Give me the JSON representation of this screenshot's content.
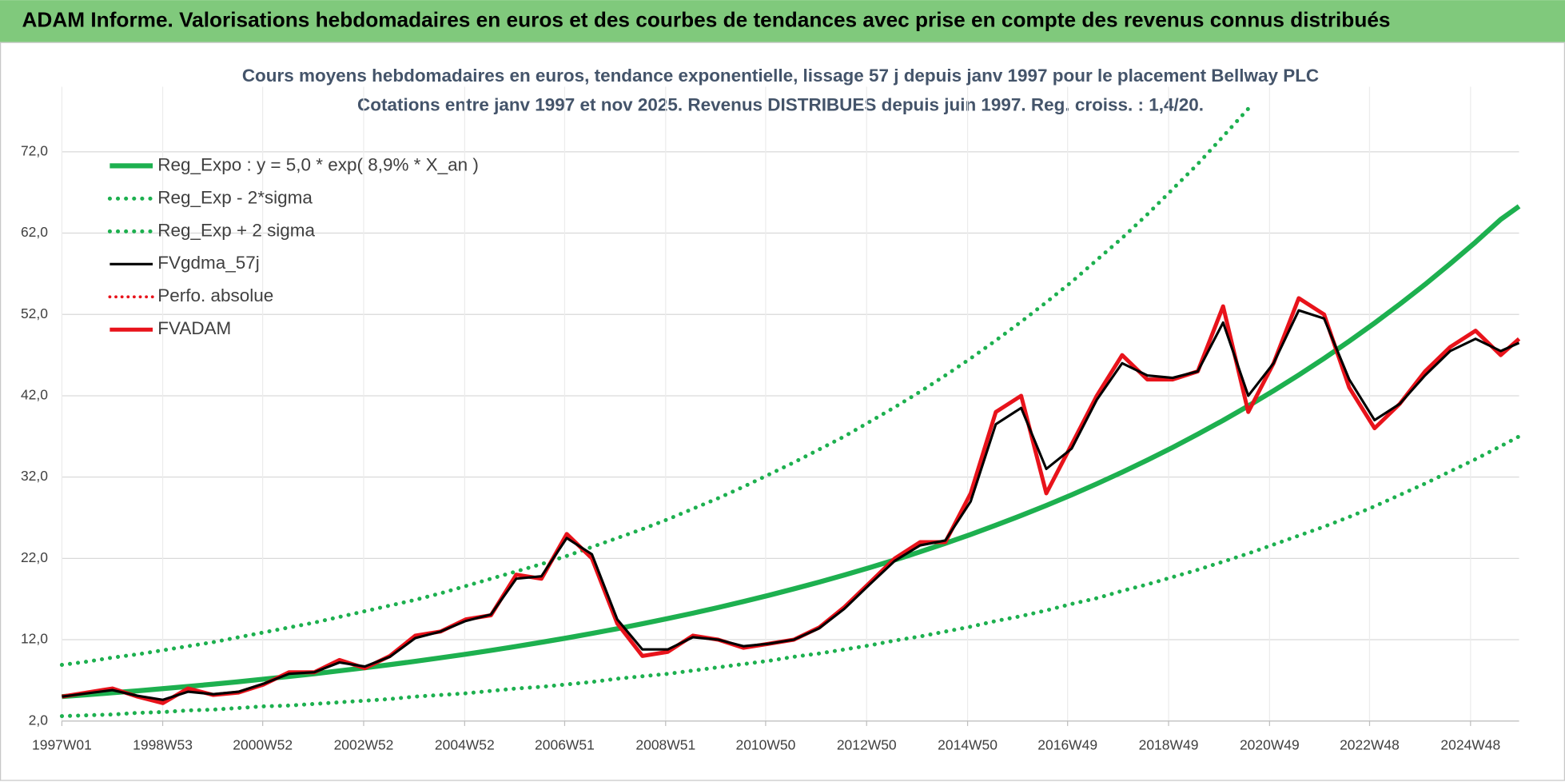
{
  "header": {
    "title": "ADAM Informe. Valorisations hebdomadaires en euros et des courbes de tendances avec prise en compte des revenus connus distribués"
  },
  "chart_data": {
    "type": "line",
    "title": "Cours moyens hebdomadaires en euros, tendance exponentielle, lissage 57 j depuis janv 1997 pour le placement Bellway PLC",
    "subtitle": "Cotations entre janv 1997 et nov 2025. Revenus DISTRIBUES depuis juin 1997. Reg. croiss. : 1,4/20.",
    "x": [
      "1997W01",
      "1997W27",
      "1998W01",
      "1998W27",
      "1999W01",
      "1999W27",
      "2000W01",
      "2000W27",
      "2001W01",
      "2001W27",
      "2002W01",
      "2002W27",
      "2003W01",
      "2003W27",
      "2004W01",
      "2004W27",
      "2005W01",
      "2005W27",
      "2006W01",
      "2006W27",
      "2007W01",
      "2007W27",
      "2008W01",
      "2008W27",
      "2009W01",
      "2009W27",
      "2010W01",
      "2010W27",
      "2011W01",
      "2011W27",
      "2012W01",
      "2012W27",
      "2013W01",
      "2013W27",
      "2014W01",
      "2014W27",
      "2015W01",
      "2015W27",
      "2016W01",
      "2016W27",
      "2017W01",
      "2017W27",
      "2018W01",
      "2018W27",
      "2019W01",
      "2019W27",
      "2020W01",
      "2020W27",
      "2021W01",
      "2021W27",
      "2022W01",
      "2022W27",
      "2023W01",
      "2023W27",
      "2024W01",
      "2024W27",
      "2025W01",
      "2025W27",
      "2025W46"
    ],
    "xticks": [
      "1997W01",
      "1998W53",
      "2000W52",
      "2002W52",
      "2004W52",
      "2006W51",
      "2008W51",
      "2010W50",
      "2012W50",
      "2014W50",
      "2016W49",
      "2018W49",
      "2020W49",
      "2022W48",
      "2024W48"
    ],
    "ylim": [
      2,
      80
    ],
    "yticks": [
      {
        "value": 2,
        "label": "2,0"
      },
      {
        "value": 12,
        "label": "12,0"
      },
      {
        "value": 22,
        "label": "22,0"
      },
      {
        "value": 32,
        "label": "32,0"
      },
      {
        "value": 42,
        "label": "42,0"
      },
      {
        "value": 52,
        "label": "52,0"
      },
      {
        "value": 62,
        "label": "62,0"
      },
      {
        "value": 72,
        "label": "72,0"
      }
    ],
    "grid": true,
    "legend": "upper left",
    "series": [
      {
        "name": "Reg_Expo : y = 5,0 * exp( 8,9% *  X_an )",
        "color": "#1db04f",
        "style": "solid",
        "linewidth": 5,
        "values": [
          5.0,
          5.23,
          5.47,
          5.71,
          5.98,
          6.25,
          6.53,
          6.83,
          7.15,
          7.47,
          7.81,
          8.17,
          8.54,
          8.93,
          9.34,
          9.77,
          10.21,
          10.68,
          11.17,
          11.68,
          12.21,
          12.77,
          13.35,
          13.96,
          14.6,
          15.26,
          15.96,
          16.69,
          17.45,
          18.25,
          19.08,
          19.95,
          20.86,
          21.81,
          22.81,
          23.85,
          24.94,
          26.08,
          27.27,
          28.51,
          29.81,
          31.17,
          32.6,
          34.08,
          35.64,
          37.27,
          38.97,
          40.75,
          42.61,
          44.55,
          46.59,
          48.71,
          50.94,
          53.26,
          55.69,
          58.24,
          60.89,
          63.68,
          65.3
        ]
      },
      {
        "name": "Reg_Exp - 2*sigma",
        "color": "#1db04f",
        "style": "dotted",
        "linewidth": 4,
        "values": [
          2.6,
          2.7,
          2.8,
          3.0,
          3.1,
          3.3,
          3.4,
          3.6,
          3.8,
          3.9,
          4.1,
          4.3,
          4.5,
          4.7,
          5.0,
          5.2,
          5.4,
          5.7,
          6.0,
          6.2,
          6.5,
          6.8,
          7.2,
          7.5,
          7.8,
          8.2,
          8.6,
          9.0,
          9.4,
          9.9,
          10.3,
          10.8,
          11.3,
          11.9,
          12.4,
          13.0,
          13.6,
          14.3,
          14.9,
          15.6,
          16.4,
          17.1,
          18.0,
          18.8,
          19.7,
          20.6,
          21.6,
          22.6,
          23.7,
          24.8,
          25.9,
          27.1,
          28.4,
          29.8,
          31.2,
          32.7,
          34.2,
          35.8,
          37.0
        ]
      },
      {
        "name": "Reg_Exp + 2 sigma",
        "color": "#1db04f",
        "style": "dotted",
        "linewidth": 4,
        "values": [
          8.9,
          9.3,
          9.8,
          10.2,
          10.7,
          11.2,
          11.7,
          12.3,
          12.9,
          13.5,
          14.1,
          14.8,
          15.5,
          16.2,
          16.9,
          17.7,
          18.6,
          19.5,
          20.4,
          21.3,
          22.3,
          23.4,
          24.5,
          25.6,
          26.8,
          28.1,
          29.4,
          30.8,
          32.3,
          33.8,
          35.4,
          37.0,
          38.8,
          40.6,
          42.5,
          44.5,
          46.6,
          48.8,
          51.1,
          53.5,
          56.0,
          58.7,
          61.4,
          64.3,
          67.4,
          70.5,
          73.9,
          77.3,
          null,
          null,
          null,
          null,
          null,
          null,
          null,
          null,
          null,
          null,
          null
        ]
      },
      {
        "name": "FVgdma_57j",
        "color": "#000000",
        "style": "solid",
        "linewidth": 2.5,
        "values": [
          5.0,
          5.4,
          5.8,
          5.1,
          4.6,
          5.6,
          5.3,
          5.6,
          6.6,
          7.8,
          8.0,
          9.2,
          8.7,
          9.9,
          12.2,
          13.0,
          14.3,
          15.1,
          19.5,
          19.8,
          24.5,
          22.5,
          14.5,
          10.8,
          10.8,
          12.3,
          12.0,
          11.2,
          11.5,
          12.0,
          13.4,
          15.8,
          18.8,
          21.7,
          23.6,
          24.2,
          29.0,
          38.5,
          40.5,
          33.0,
          35.5,
          41.5,
          46.0,
          44.5,
          44.2,
          45.0,
          51.0,
          42.0,
          46.0,
          52.5,
          51.5,
          44.0,
          39.0,
          41.0,
          44.5,
          47.5,
          49.0,
          47.5,
          48.5
        ]
      },
      {
        "name": "Perfo. absolue",
        "color": "#e8131b",
        "style": "dotted",
        "linewidth": 3,
        "values": [
          null,
          null,
          null,
          null,
          null,
          null,
          null,
          null,
          null,
          null,
          null,
          null,
          null,
          null,
          null,
          null,
          null,
          null,
          null,
          null,
          null,
          null,
          null,
          null,
          null,
          null,
          null,
          null,
          null,
          null,
          null,
          null,
          null,
          null,
          null,
          null,
          null,
          null,
          null,
          null,
          null,
          null,
          null,
          null,
          null,
          null,
          null,
          null,
          null,
          null,
          null,
          null,
          null,
          null,
          null,
          null,
          null,
          null,
          null
        ]
      },
      {
        "name": "FVADAM",
        "color": "#e8131b",
        "style": "solid",
        "linewidth": 4,
        "values": [
          5.0,
          5.5,
          6.0,
          5.0,
          4.2,
          6.0,
          5.2,
          5.5,
          6.5,
          8.0,
          8.0,
          9.5,
          8.5,
          10.0,
          12.5,
          13.0,
          14.5,
          15.0,
          20.0,
          19.5,
          25.0,
          22.0,
          14.0,
          10.0,
          10.5,
          12.5,
          12.0,
          11.0,
          11.5,
          12.0,
          13.5,
          16.0,
          19.0,
          22.0,
          24.0,
          24.0,
          30.0,
          40.0,
          42.0,
          30.0,
          36.0,
          42.0,
          47.0,
          44.0,
          44.0,
          45.0,
          53.0,
          40.0,
          46.0,
          54.0,
          52.0,
          43.0,
          38.0,
          41.0,
          45.0,
          48.0,
          50.0,
          47.0,
          49.0
        ]
      }
    ]
  }
}
